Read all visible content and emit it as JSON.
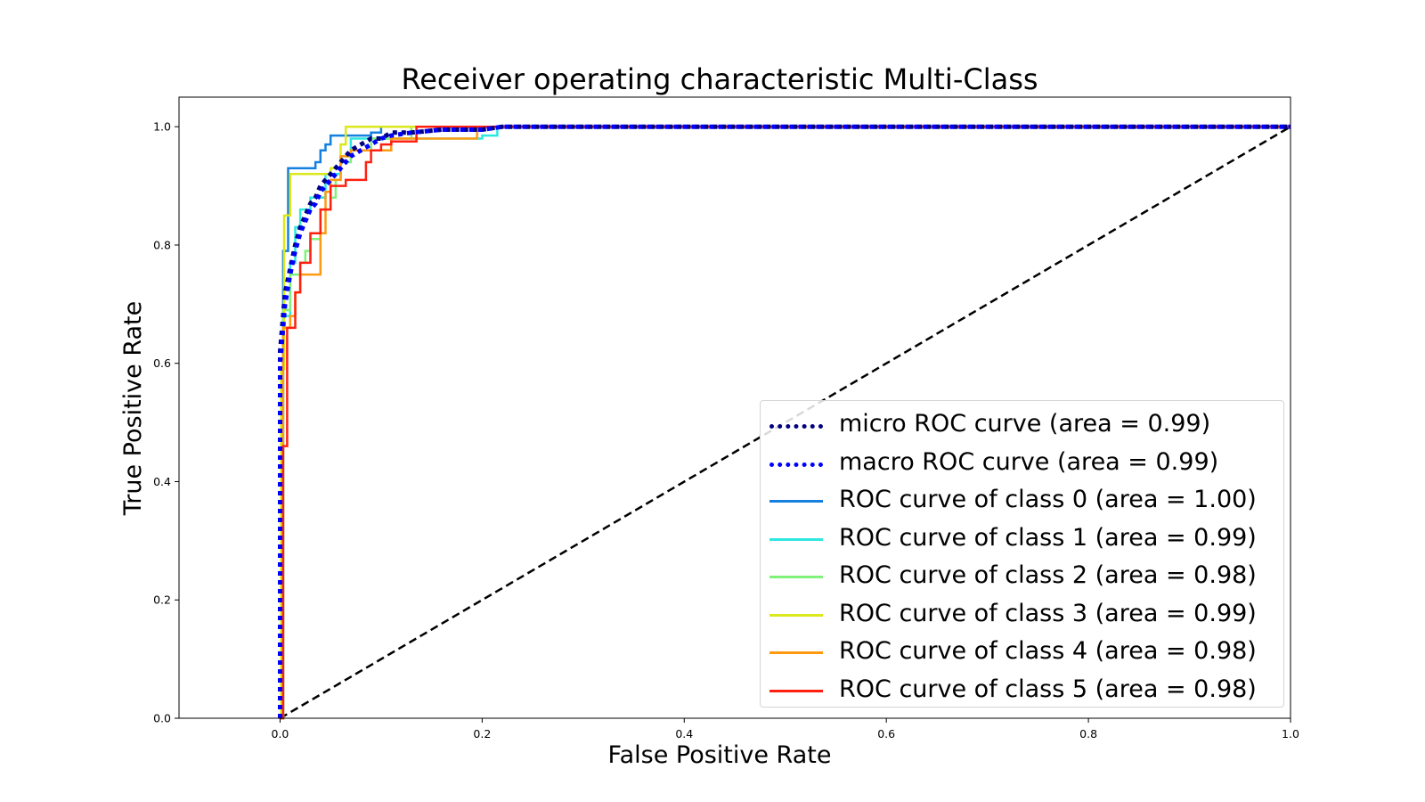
{
  "chart_data": {
    "type": "line",
    "title": "Receiver operating characteristic Multi-Class",
    "xlabel": "False Positive Rate",
    "ylabel": "True Positive Rate",
    "xlim": [
      -0.1,
      1.0
    ],
    "ylim": [
      0.0,
      1.05
    ],
    "xticks": [
      "0.0",
      "0.2",
      "0.4",
      "0.6",
      "0.8",
      "1.0"
    ],
    "yticks": [
      "0.0",
      "0.2",
      "0.4",
      "0.6",
      "0.8",
      "1.0"
    ],
    "grid": false,
    "legend_position": "lower-right",
    "series": [
      {
        "name": "micro ROC curve (area = 0.99)",
        "color": "#000080",
        "style": "dotted",
        "x": [
          0.0,
          0.0,
          0.005,
          0.01,
          0.015,
          0.02,
          0.025,
          0.03,
          0.035,
          0.04,
          0.05,
          0.06,
          0.07,
          0.08,
          0.09,
          0.1,
          0.11,
          0.13,
          0.16,
          0.2,
          0.22,
          1.0
        ],
        "y": [
          0.0,
          0.62,
          0.72,
          0.76,
          0.8,
          0.83,
          0.85,
          0.87,
          0.88,
          0.9,
          0.92,
          0.94,
          0.96,
          0.97,
          0.98,
          0.98,
          0.99,
          0.99,
          0.995,
          0.995,
          1.0,
          1.0
        ]
      },
      {
        "name": "macro ROC curve (area = 0.99)",
        "color": "#0000ff",
        "style": "dotted",
        "x": [
          0.0,
          0.0,
          0.005,
          0.01,
          0.015,
          0.02,
          0.025,
          0.03,
          0.035,
          0.04,
          0.05,
          0.06,
          0.07,
          0.08,
          0.09,
          0.1,
          0.11,
          0.13,
          0.16,
          0.2,
          0.22,
          1.0
        ],
        "y": [
          0.0,
          0.6,
          0.7,
          0.75,
          0.79,
          0.82,
          0.84,
          0.86,
          0.87,
          0.89,
          0.91,
          0.93,
          0.95,
          0.96,
          0.97,
          0.98,
          0.985,
          0.99,
          0.995,
          0.995,
          1.0,
          1.0
        ]
      },
      {
        "name": "ROC curve of class 0 (area = 1.00)",
        "color": "#1580e0",
        "style": "solid",
        "x": [
          0.0,
          0.003,
          0.003,
          0.008,
          0.008,
          0.035,
          0.035,
          0.04,
          0.04,
          0.045,
          0.045,
          0.05,
          0.05,
          0.09,
          0.09,
          0.1,
          0.1,
          1.0
        ],
        "y": [
          0.0,
          0.0,
          0.79,
          0.79,
          0.93,
          0.93,
          0.94,
          0.94,
          0.96,
          0.96,
          0.97,
          0.97,
          0.985,
          0.985,
          0.99,
          0.99,
          1.0,
          1.0
        ]
      },
      {
        "name": "ROC curve of class 1 (area = 0.99)",
        "color": "#2ee8e0",
        "style": "solid",
        "x": [
          0.0,
          0.003,
          0.003,
          0.01,
          0.01,
          0.015,
          0.015,
          0.02,
          0.02,
          0.03,
          0.03,
          0.045,
          0.045,
          0.06,
          0.06,
          0.07,
          0.07,
          0.2,
          0.2,
          0.215,
          0.215,
          1.0
        ],
        "y": [
          0.0,
          0.0,
          0.68,
          0.68,
          0.77,
          0.77,
          0.83,
          0.83,
          0.86,
          0.86,
          0.88,
          0.88,
          0.92,
          0.92,
          0.95,
          0.95,
          0.98,
          0.98,
          0.985,
          0.985,
          1.0,
          1.0
        ]
      },
      {
        "name": "ROC curve of class 2 (area = 0.98)",
        "color": "#7ff27a",
        "style": "solid",
        "x": [
          0.0,
          0.003,
          0.003,
          0.01,
          0.01,
          0.02,
          0.02,
          0.025,
          0.025,
          0.03,
          0.03,
          0.04,
          0.04,
          0.05,
          0.05,
          0.055,
          0.055,
          0.06,
          0.06,
          0.07,
          0.07,
          0.09,
          0.09,
          0.13,
          0.13,
          1.0
        ],
        "y": [
          0.0,
          0.0,
          0.69,
          0.69,
          0.75,
          0.75,
          0.77,
          0.77,
          0.79,
          0.79,
          0.81,
          0.81,
          0.86,
          0.86,
          0.88,
          0.88,
          0.91,
          0.91,
          0.94,
          0.94,
          0.96,
          0.96,
          0.98,
          0.98,
          1.0,
          1.0
        ]
      },
      {
        "name": "ROC curve of class 3 (area = 0.99)",
        "color": "#dbe81c",
        "style": "solid",
        "x": [
          0.0,
          0.001,
          0.001,
          0.004,
          0.004,
          0.01,
          0.01,
          0.05,
          0.05,
          0.06,
          0.06,
          0.065,
          0.065,
          0.135,
          0.135,
          1.0
        ],
        "y": [
          0.0,
          0.0,
          0.59,
          0.59,
          0.85,
          0.85,
          0.92,
          0.92,
          0.93,
          0.93,
          0.97,
          0.97,
          1.0,
          1.0,
          1.0,
          1.0
        ]
      },
      {
        "name": "ROC curve of class 4 (area = 0.98)",
        "color": "#ff9a10",
        "style": "solid",
        "x": [
          0.0,
          0.003,
          0.003,
          0.01,
          0.01,
          0.015,
          0.015,
          0.02,
          0.02,
          0.03,
          0.03,
          0.04,
          0.04,
          0.045,
          0.045,
          0.05,
          0.05,
          0.06,
          0.06,
          0.07,
          0.07,
          0.11,
          0.11,
          0.195,
          0.195,
          1.0
        ],
        "y": [
          0.0,
          0.0,
          0.66,
          0.66,
          0.68,
          0.68,
          0.72,
          0.72,
          0.75,
          0.75,
          0.75,
          0.75,
          0.82,
          0.82,
          0.89,
          0.89,
          0.91,
          0.91,
          0.95,
          0.95,
          0.96,
          0.96,
          0.98,
          0.98,
          1.0,
          1.0
        ]
      },
      {
        "name": "ROC curve of class 5 (area = 0.98)",
        "color": "#ff2010",
        "style": "solid",
        "x": [
          0.0,
          0.003,
          0.003,
          0.007,
          0.007,
          0.015,
          0.015,
          0.02,
          0.02,
          0.03,
          0.03,
          0.04,
          0.04,
          0.05,
          0.05,
          0.065,
          0.065,
          0.085,
          0.085,
          0.09,
          0.09,
          0.1,
          0.1,
          0.11,
          0.11,
          0.135,
          0.135,
          1.0
        ],
        "y": [
          0.0,
          0.0,
          0.46,
          0.46,
          0.66,
          0.66,
          0.72,
          0.72,
          0.77,
          0.77,
          0.82,
          0.82,
          0.86,
          0.86,
          0.9,
          0.9,
          0.91,
          0.91,
          0.94,
          0.94,
          0.96,
          0.96,
          0.97,
          0.97,
          0.975,
          0.975,
          1.0,
          1.0
        ]
      },
      {
        "name": "",
        "color": "#000000",
        "style": "dashed",
        "x": [
          0.0,
          1.0
        ],
        "y": [
          0.0,
          1.0
        ]
      }
    ]
  }
}
